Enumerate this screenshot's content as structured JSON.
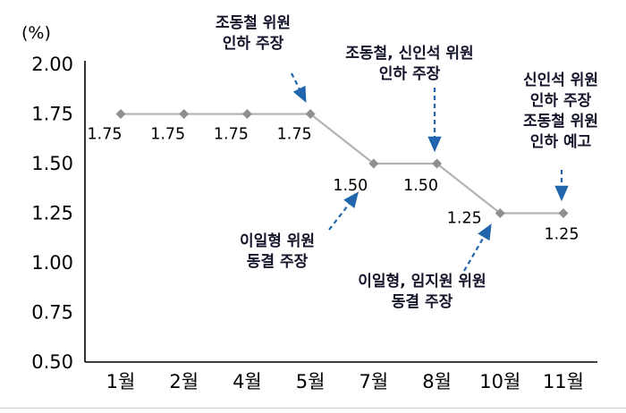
{
  "chart_data": {
    "type": "line",
    "title": "",
    "ylabel": "(%)",
    "xlabel": "",
    "categories": [
      "1월",
      "2월",
      "4월",
      "5월",
      "7월",
      "8월",
      "10월",
      "11월"
    ],
    "values": [
      1.75,
      1.75,
      1.75,
      1.75,
      1.5,
      1.5,
      1.25,
      1.25
    ],
    "data_labels": [
      "1.75",
      "1.75",
      "1.75",
      "1.75",
      "1.50",
      "1.50",
      "1.25",
      "1.25"
    ],
    "ylim": [
      0.5,
      2.0
    ],
    "ytick_step": 0.25,
    "yticks": [
      "2.00",
      "1.75",
      "1.50",
      "1.25",
      "1.00",
      "0.75",
      "0.50"
    ],
    "grid": false,
    "legend": "none",
    "line_color": "#b3b3b3",
    "marker_color": "#8f8f8f",
    "marker_shape": "diamond",
    "axis_color": "#000000",
    "arrow_color": "#2166ac",
    "annotation_text_color": "#14142b",
    "annotations": [
      {
        "lines": [
          "조동철 위원",
          "인하 주장"
        ],
        "target_category": "5월",
        "target_index": 3,
        "position": "above"
      },
      {
        "lines": [
          "조동철, 신인석 위원",
          "인하 주장"
        ],
        "target_category": "8월",
        "target_index": 5,
        "position": "above"
      },
      {
        "lines": [
          "신인석 위원",
          "인하 주장",
          "조동철 위원",
          "인하 예고"
        ],
        "target_category": "11월",
        "target_index": 7,
        "position": "above"
      },
      {
        "lines": [
          "이일형 위원",
          "동결 주장"
        ],
        "target_category": "7월",
        "target_index": 4,
        "position": "below-left"
      },
      {
        "lines": [
          "이일형, 임지원 위원",
          "동결 주장"
        ],
        "target_category": "10월",
        "target_index": 6,
        "position": "below"
      }
    ]
  }
}
